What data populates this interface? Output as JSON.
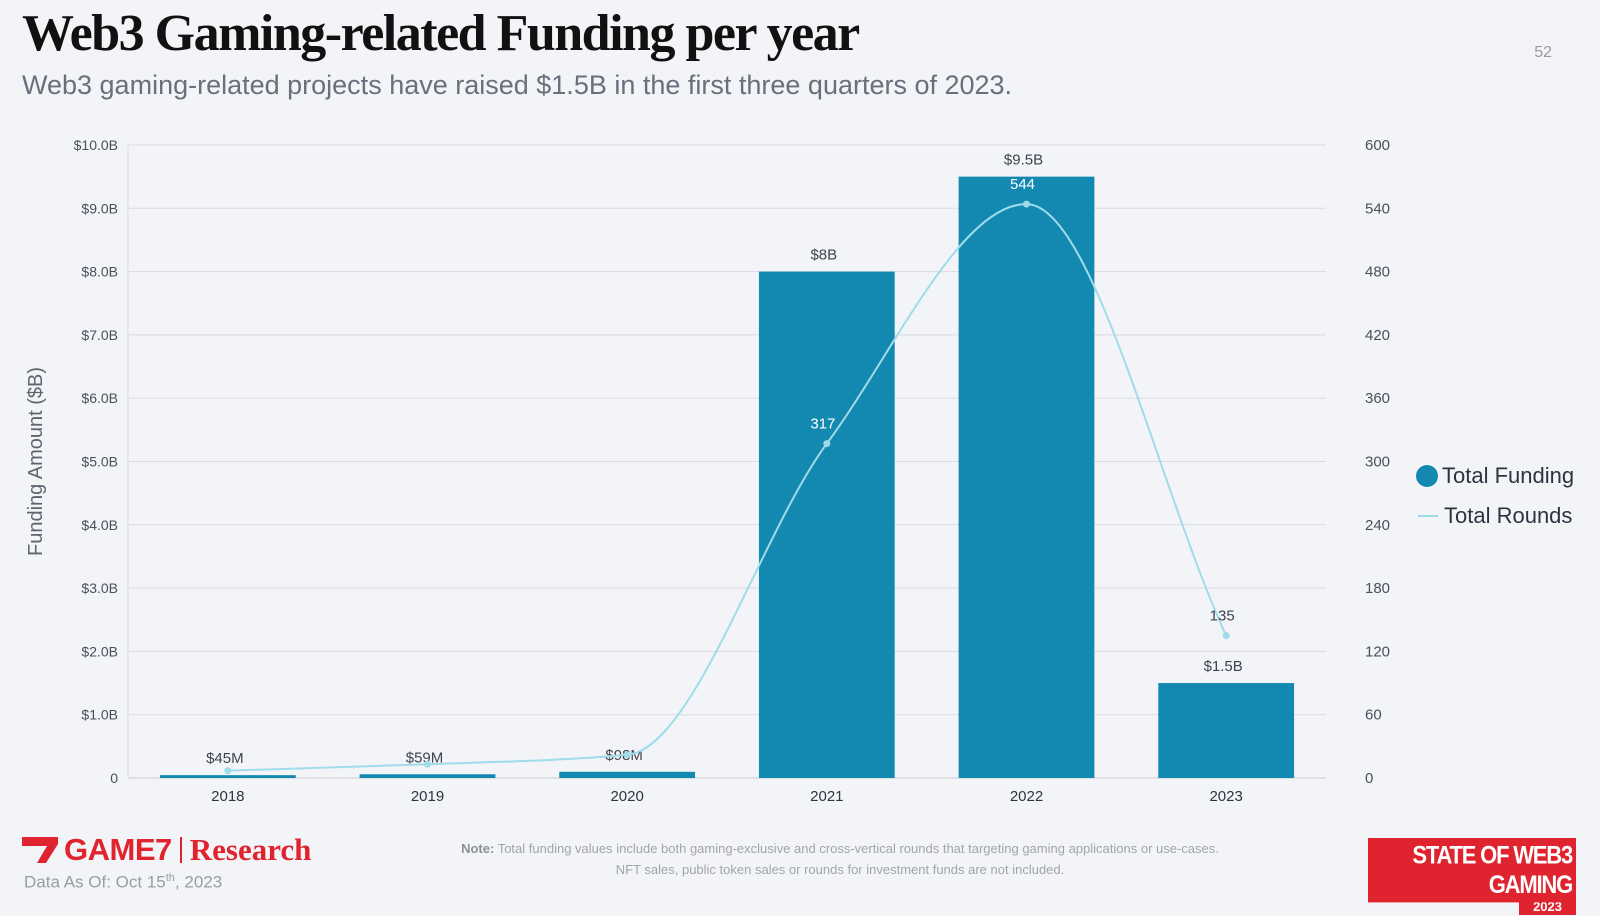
{
  "title": "Web3 Gaming-related Funding per year",
  "subtitle": "Web3 gaming-related projects have raised $1.5B in the first three quarters of 2023.",
  "page_number": "52",
  "colors": {
    "bar": "#1389b2",
    "line": "#9fdcea",
    "brand_red": "#e0242f"
  },
  "legend": {
    "funding": "Total Funding",
    "rounds": "Total Rounds"
  },
  "footer": {
    "logo_game7": "GAME7",
    "logo_research": "Research",
    "data_as_of_prefix": "Data As Of: Oct 15",
    "data_as_of_sup": "th",
    "data_as_of_suffix": ", 2023",
    "note_label": "Note:",
    "note_line1": "Total funding values include both gaming-exclusive and cross-vertical rounds that targeting gaming applications or use-cases.",
    "note_line2": "NFT sales, public token sales or rounds for investment funds are not included.",
    "badge_main": "STATE OF WEB3 GAMING",
    "badge_year": "2023"
  },
  "chart_data": {
    "type": "bar",
    "categories": [
      "2018",
      "2019",
      "2020",
      "2021",
      "2022",
      "2023"
    ],
    "ylabel": "Funding Amount ($B)",
    "ylim": [
      0,
      10
    ],
    "y2lim": [
      0,
      600
    ],
    "yticks": [
      "0",
      "$1.0B",
      "$2.0B",
      "$3.0B",
      "$4.0B",
      "$5.0B",
      "$6.0B",
      "$7.0B",
      "$8.0B",
      "$9.0B",
      "$10.0B"
    ],
    "y2ticks": [
      "0",
      "60",
      "120",
      "180",
      "240",
      "300",
      "360",
      "420",
      "480",
      "540",
      "600"
    ],
    "grid": true,
    "legend_position": "right",
    "series": [
      {
        "name": "Total Funding",
        "type": "bar",
        "axis": "left",
        "values": [
          0.045,
          0.059,
          0.098,
          8.0,
          9.5,
          1.5
        ],
        "labels": [
          "$45M",
          "$59M",
          "$98M",
          "$8B",
          "$9.5B",
          "$1.5B"
        ]
      },
      {
        "name": "Total Rounds",
        "type": "line",
        "axis": "right",
        "values": [
          7,
          13,
          22,
          317,
          544,
          135
        ],
        "labels": [
          "",
          "",
          "",
          "317",
          "544",
          "135"
        ]
      }
    ]
  }
}
